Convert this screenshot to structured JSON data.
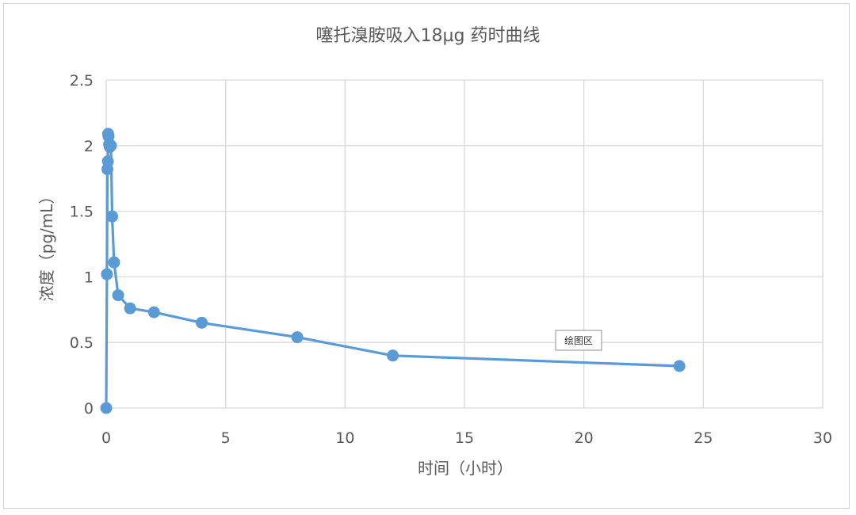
{
  "chart_data": {
    "type": "scatter",
    "title": "噻托溴胺吸入18µg 药时曲线",
    "xlabel": "时间（小时）",
    "ylabel": "浓度（pg/mL）",
    "xlim": [
      0,
      30
    ],
    "ylim": [
      0,
      2.5
    ],
    "x_ticks": [
      "0",
      "5",
      "10",
      "15",
      "20",
      "25",
      "30"
    ],
    "y_ticks": [
      "0",
      "0.5",
      "1",
      "1.5",
      "2",
      "2.5"
    ],
    "grid": true,
    "legend": "none",
    "line_color": "#5B9BD5",
    "series": [
      {
        "x": [
          0,
          0.03,
          0.05,
          0.07,
          0.08,
          0.1,
          0.12,
          0.15,
          0.2,
          0.25,
          0.33,
          0.5,
          1,
          2,
          4,
          8,
          12,
          24
        ],
        "y": [
          0,
          1.02,
          1.82,
          1.88,
          2.09,
          2.07,
          2.01,
          1.99,
          2.0,
          1.46,
          1.11,
          0.86,
          0.76,
          0.73,
          0.65,
          0.54,
          0.4,
          0.32
        ]
      }
    ]
  },
  "tooltip": {
    "label": "绘图区"
  }
}
